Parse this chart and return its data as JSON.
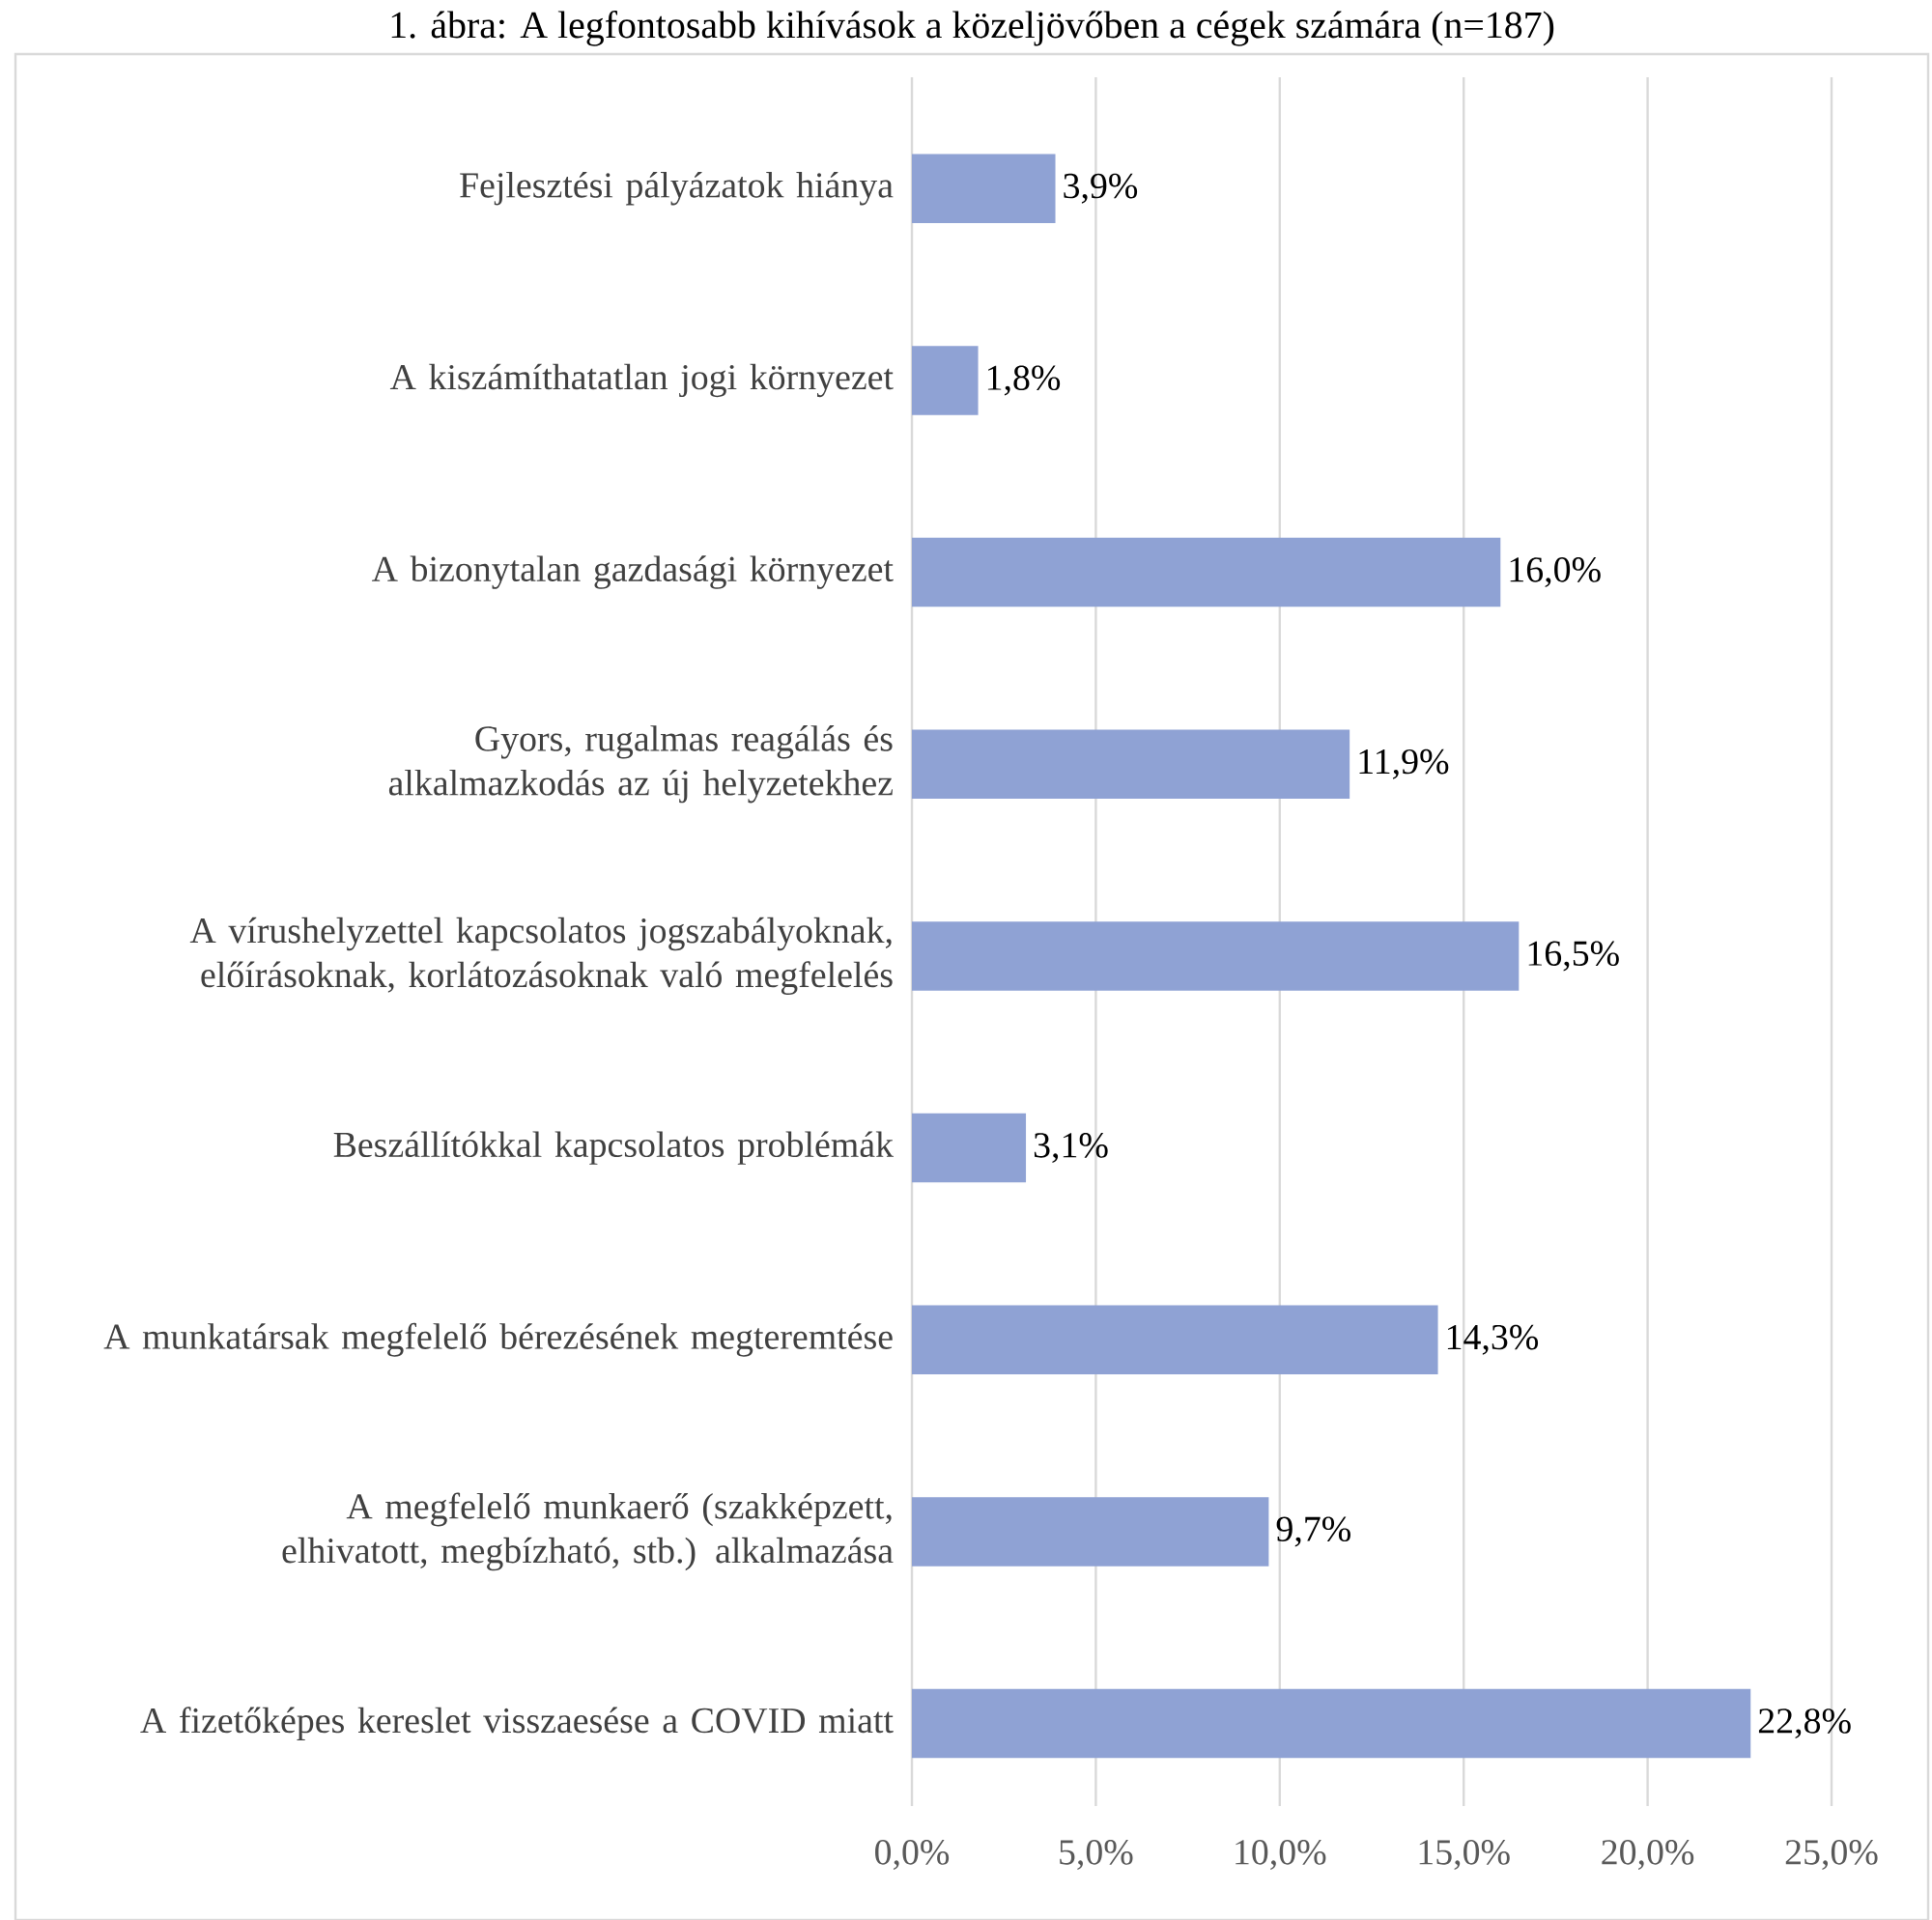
{
  "chart_data": {
    "type": "bar",
    "orientation": "horizontal",
    "title": "1. ábra: A legfontosabb kihívások a közeljövőben a cégek számára (n=187)",
    "categories": [
      "Fejlesztési pályázatok hiánya",
      "A kiszámíthatatlan jogi környezet",
      "A bizonytalan gazdasági környezet",
      "Gyors, rugalmas reagálás és alkalmazkodás az új helyzetekhez",
      "A vírushelyzettel kapcsolatos jogszabályoknak, előírásoknak, korlátozásoknak való megfelelés",
      "Beszállítókkal kapcsolatos problémák",
      "A munkatársak megfelelő bérezésének megteremtése",
      "A megfelelő munkaerő (szakképzett, elhivatott, megbízható, stb.) alkalmazása",
      "A fizetőképes kereslet visszaesése a COVID miatt"
    ],
    "values": [
      3.9,
      1.8,
      16.0,
      11.9,
      16.5,
      3.1,
      14.3,
      9.7,
      22.8
    ],
    "value_labels": [
      "3,9%",
      "1,8%",
      "16,0%",
      "11,9%",
      "16,5%",
      "3,1%",
      "14,3%",
      "9,7%",
      "22,8%"
    ],
    "color": "#8fa2d4",
    "xlim": [
      0,
      25
    ],
    "xticks": [
      {
        "value": 0,
        "label": "0,0%"
      },
      {
        "value": 5,
        "label": "5,0%"
      },
      {
        "value": 10,
        "label": "10,0%"
      },
      {
        "value": 15,
        "label": "15,0%"
      },
      {
        "value": 20,
        "label": "20,0%"
      },
      {
        "value": 25,
        "label": "25,0%"
      }
    ],
    "grid": "x"
  }
}
